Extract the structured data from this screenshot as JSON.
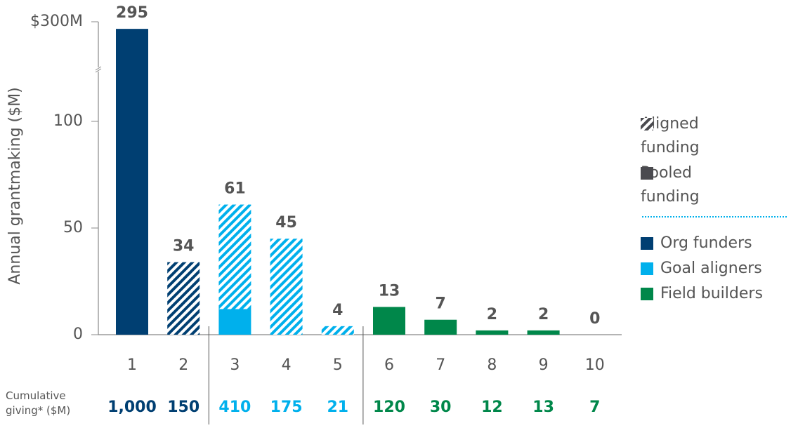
{
  "chart_data": {
    "type": "bar",
    "y_label": "Annual grantmaking ($M)",
    "categories": [
      "1",
      "2",
      "3",
      "4",
      "5",
      "6",
      "7",
      "8",
      "9",
      "10"
    ],
    "series": [
      {
        "name": "Pooled funding",
        "color": "#4a4a4f",
        "values": [
          295,
          0,
          12,
          0,
          0,
          13,
          7,
          2,
          2,
          0
        ]
      },
      {
        "name": "Aligned funding",
        "color": "#4a4a4f",
        "hatched": true,
        "values": [
          0,
          34,
          49,
          45,
          4,
          0,
          0,
          0,
          0,
          0
        ]
      }
    ],
    "totals": [
      295,
      34,
      61,
      45,
      4,
      13,
      7,
      2,
      2,
      0
    ],
    "groups": [
      {
        "name": "Org funders",
        "color": "#003f72"
      },
      {
        "name": "Goal aligners",
        "color": "#00b0ec"
      },
      {
        "name": "Field builders",
        "color": "#00874a"
      }
    ],
    "group_of": [
      0,
      0,
      1,
      1,
      1,
      2,
      2,
      2,
      2,
      2
    ],
    "ylim": [
      0,
      300
    ],
    "axis_break": [
      124,
      266
    ],
    "yticks": [
      0,
      50,
      100,
      {
        "value": 300,
        "label": "$300M"
      }
    ],
    "cumulative": {
      "label": "Cumulative giving* ($M)",
      "values": [
        1000,
        150,
        410,
        175,
        21,
        120,
        30,
        12,
        13,
        7
      ],
      "value_labels": [
        "1,000",
        "150",
        "410",
        "175",
        "21",
        "120",
        "30",
        "12",
        "13",
        "7"
      ]
    }
  }
}
